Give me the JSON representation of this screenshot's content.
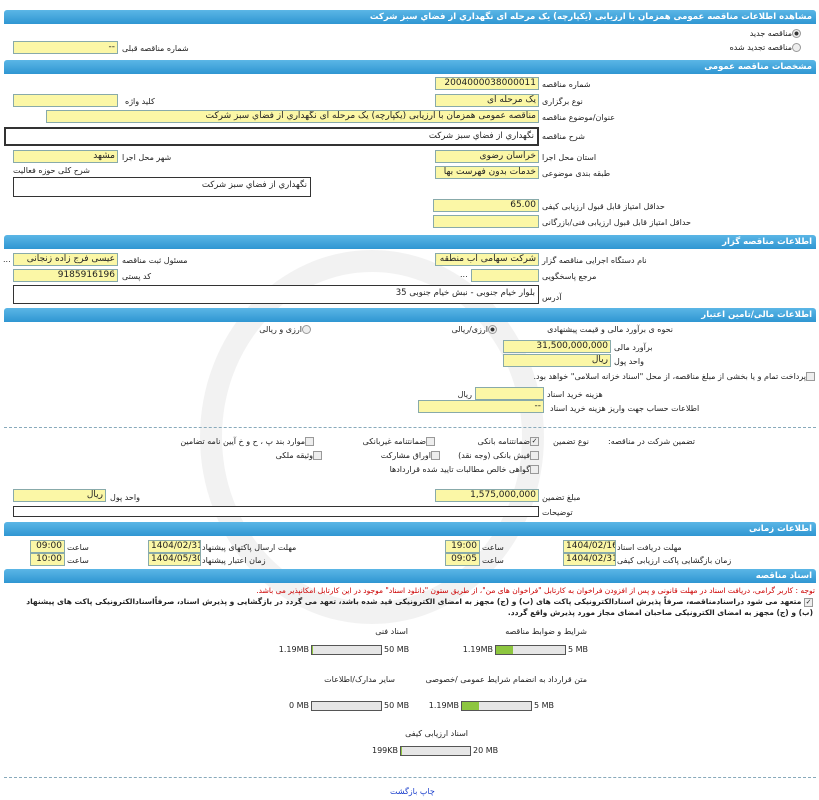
{
  "header": {
    "title": "مشاهده اطلاعات مناقصه عمومی همزمان با ارزیابی (یکپارچه) یک مرحله ای نگهداري از فضاي سبز شرکت"
  },
  "top": {
    "new_label": "مناقصه جدید",
    "renewed_label": "مناقصه تجدید شده",
    "prev_label": "شماره مناقصه قبلی",
    "prev_value": "--"
  },
  "general": {
    "section": "مشخصات مناقصه عمومی",
    "number_label": "شماره مناقصه",
    "number": "2004000038000011",
    "type_label": "نوع برگزاری",
    "type": "یک مرحله ای",
    "keyword_label": "کلید واژه",
    "keyword": "",
    "title_label": "عنوان/موضوع مناقصه",
    "title": "مناقصه عمومی همزمان با ارزیابی (یکپارچه) یک مرحله ای نگهداري از فضاي سبز شرکت",
    "desc_label": "شرح مناقصه",
    "desc": "نگهداري از فضاي سبز شرکت",
    "province_label": "استان محل اجرا",
    "province": "خراسان رضوی",
    "city_label": "شهر محل اجرا",
    "city": "مشهد",
    "category_label": "طبقه بندی موضوعی",
    "category": "خدمات بدون فهرست بها",
    "activity_label": "شرح کلی حوزه فعالیت",
    "activity": "نگهداري از فضاي سبز شرکت",
    "min_quality_label": "حداقل امتیاز قابل قبول ارزیابی کیفی",
    "min_quality": "65.00",
    "min_tech_label": "حداقل امتیاز قابل قبول ارزیابی فنی/بازرگانی",
    "min_tech": ""
  },
  "organizer": {
    "section": "اطلاعات مناقصه گزار",
    "org_label": "نام دستگاه اجرایی مناقصه گزار",
    "org": "شرکت سهامی اب منطقه ا",
    "resp_label": "مسئول ثبت مناقصه",
    "resp": "عیسی فرج زاده زنجانی",
    "more": "...",
    "ref_label": "مرجع پاسخگویی",
    "ref": "",
    "postal_label": "کد پستی",
    "postal": "9185916196",
    "address_label": "آدرس",
    "address": "بلوار خیام جنوبی - نبش خیام جنوبی 35"
  },
  "finance": {
    "section": "اطلاعات مالی/تامین اعتبار",
    "method_label": "نحوه ی برآورد مالی و قیمت پیشنهادی",
    "opt_rial": "ارزی/ریالی",
    "opt_fx": "ارزی و ریالی",
    "estimate_label": "برآورد مالی",
    "estimate": "31,500,000,000",
    "unit_label": "واحد پول",
    "unit": "ریال",
    "treasury": "پرداخت تمام و یا بخشی از مبلغ مناقصه، از محل \"اسناد خزانه اسلامی\" خواهد بود.",
    "doc_cost_label": "هزینه خرید اسناد",
    "doc_cost_unit": "ریال",
    "doc_cost": "",
    "account_label": "اطلاعات حساب جهت واریز هزینه خرید اسناد",
    "account": "--",
    "guarantee_label": "تضمین شرکت در مناقصه:",
    "guarantee_type_label": "نوع تضمین",
    "guarantees": [
      {
        "label": "ضمانتنامه بانکی",
        "checked": true
      },
      {
        "label": "ضمانتنامه غیربانکی",
        "checked": false
      },
      {
        "label": "موارد بند پ ، ح و خ آیین نامه تضامین",
        "checked": false
      },
      {
        "label": "فیش بانکی (وجه نقد)",
        "checked": false
      },
      {
        "label": "اوراق مشارکت",
        "checked": false
      },
      {
        "label": "وثیقه ملکی",
        "checked": false
      },
      {
        "label": "گواهی خالص مطالبات تایید شده قراردادها",
        "checked": false
      }
    ],
    "amount_label": "مبلغ تضمین",
    "amount": "1,575,000,000",
    "amount_unit_label": "واحد پول",
    "amount_unit": "ریال",
    "notes_label": "توضیحات",
    "notes": ""
  },
  "timing": {
    "section": "اطلاعات زمانی",
    "doc_deadline_label": "مهلت دریافت اسناد",
    "doc_deadline": "1404/02/16",
    "time_label": "ساعت",
    "doc_time": "19:00",
    "submit_label": "مهلت ارسال پاکتهای پیشنهاد",
    "submit": "1404/02/31",
    "submit_time": "09:00",
    "open_label": "زمان بازگشایی پاکت ارزیابی کیفی",
    "open": "1404/02/31",
    "open_time": "09:05",
    "valid_label": "زمان اعتبار پیشنهاد",
    "valid": "1404/05/30",
    "valid_time": "10:00"
  },
  "docs": {
    "section": "اسناد مناقصه",
    "note": "توجه : کاربر گرامی، دریافت اسناد در مهلت قانونی و پس از افزودن فراخوان به کارتابل \"فراخوان های من\"، از طریق ستون \"دانلود اسناد\" موجود در این کارتابل امکانپذیر می باشد.",
    "commit": "متعهد می شود دراسنادمناقصه، صرفاً پذیرش اسنادالکترونیکی پاکت های (ب) و (ج) مجهز به امضای الکترونیکی قید شده باشد، تعهد می گردد در بازگشایی و پذیرش اسناد، صرفاًاسنادالکترونیکی پاکت های پیشنهاد (ب) و (ج) مجهز به امضای الکترونیکی صاحبان امضای مجاز مورد پذیرش واقع گردد.",
    "files": [
      {
        "title": "شرایط و ضوابط مناقصه",
        "size": "1.19MB",
        "max": "5 MB",
        "fill": 0.24
      },
      {
        "title": "اسناد فنی",
        "size": "1.19MB",
        "max": "50 MB",
        "fill": 0.02
      },
      {
        "title": "متن قرارداد به انضمام شرایط عمومی /خصوصی",
        "size": "1.19MB",
        "max": "5 MB",
        "fill": 0.24
      },
      {
        "title": "سایر مدارک/اطلاعات",
        "size": "0 MB",
        "max": "50 MB",
        "fill": 0
      },
      {
        "title": "اسناد ارزیابی کیفی",
        "size": "199KB",
        "max": "20 MB",
        "fill": 0.01
      }
    ]
  },
  "footer": {
    "print": "چاپ",
    "back": "بازگشت"
  },
  "colors": {
    "bar": "#2f96d2",
    "field": "#fbf7a6",
    "progress": "#8dc63f",
    "note": "#cc0000",
    "link": "#1a3fcc"
  }
}
